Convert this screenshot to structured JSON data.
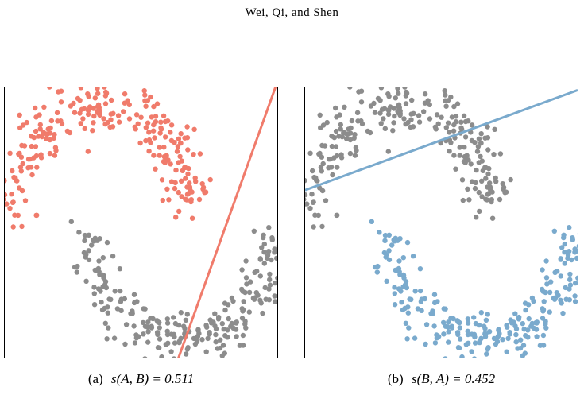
{
  "header": {
    "running_head": "Wei, Qi, and Shen"
  },
  "colors": {
    "cluster_a": "#f07b6b",
    "cluster_b": "#7aaacd",
    "other": "#8c8c8c",
    "axes": "#000000"
  },
  "figure": {
    "subfigures": [
      {
        "id": "a",
        "label": "(a)",
        "caption_math": "s(A, B) = 0.511",
        "highlight": "cluster_a",
        "line_color": "#f07b6b"
      },
      {
        "id": "b",
        "label": "(b)",
        "caption_math": "s(B, A) = 0.452",
        "highlight": "cluster_b",
        "line_color": "#7aaacd"
      }
    ]
  },
  "chart_data": [
    {
      "type": "scatter",
      "title": "",
      "series": [
        {
          "name": "",
          "highlighted": true,
          "shape": "upper-moon"
        },
        {
          "name": "",
          "highlighted": false,
          "shape": "lower-moon"
        }
      ],
      "separator_line": {
        "points": [
          [
            0.62,
            -0.05
          ],
          [
            1.0,
            1.02
          ]
        ]
      },
      "grid": false
    },
    {
      "type": "scatter",
      "title": "",
      "series": [
        {
          "name": "",
          "highlighted": false,
          "shape": "upper-moon"
        },
        {
          "name": "",
          "highlighted": true,
          "shape": "lower-moon"
        }
      ],
      "separator_line": {
        "points": [
          [
            0.0,
            0.62
          ],
          [
            1.0,
            0.99
          ]
        ]
      },
      "grid": false
    }
  ]
}
